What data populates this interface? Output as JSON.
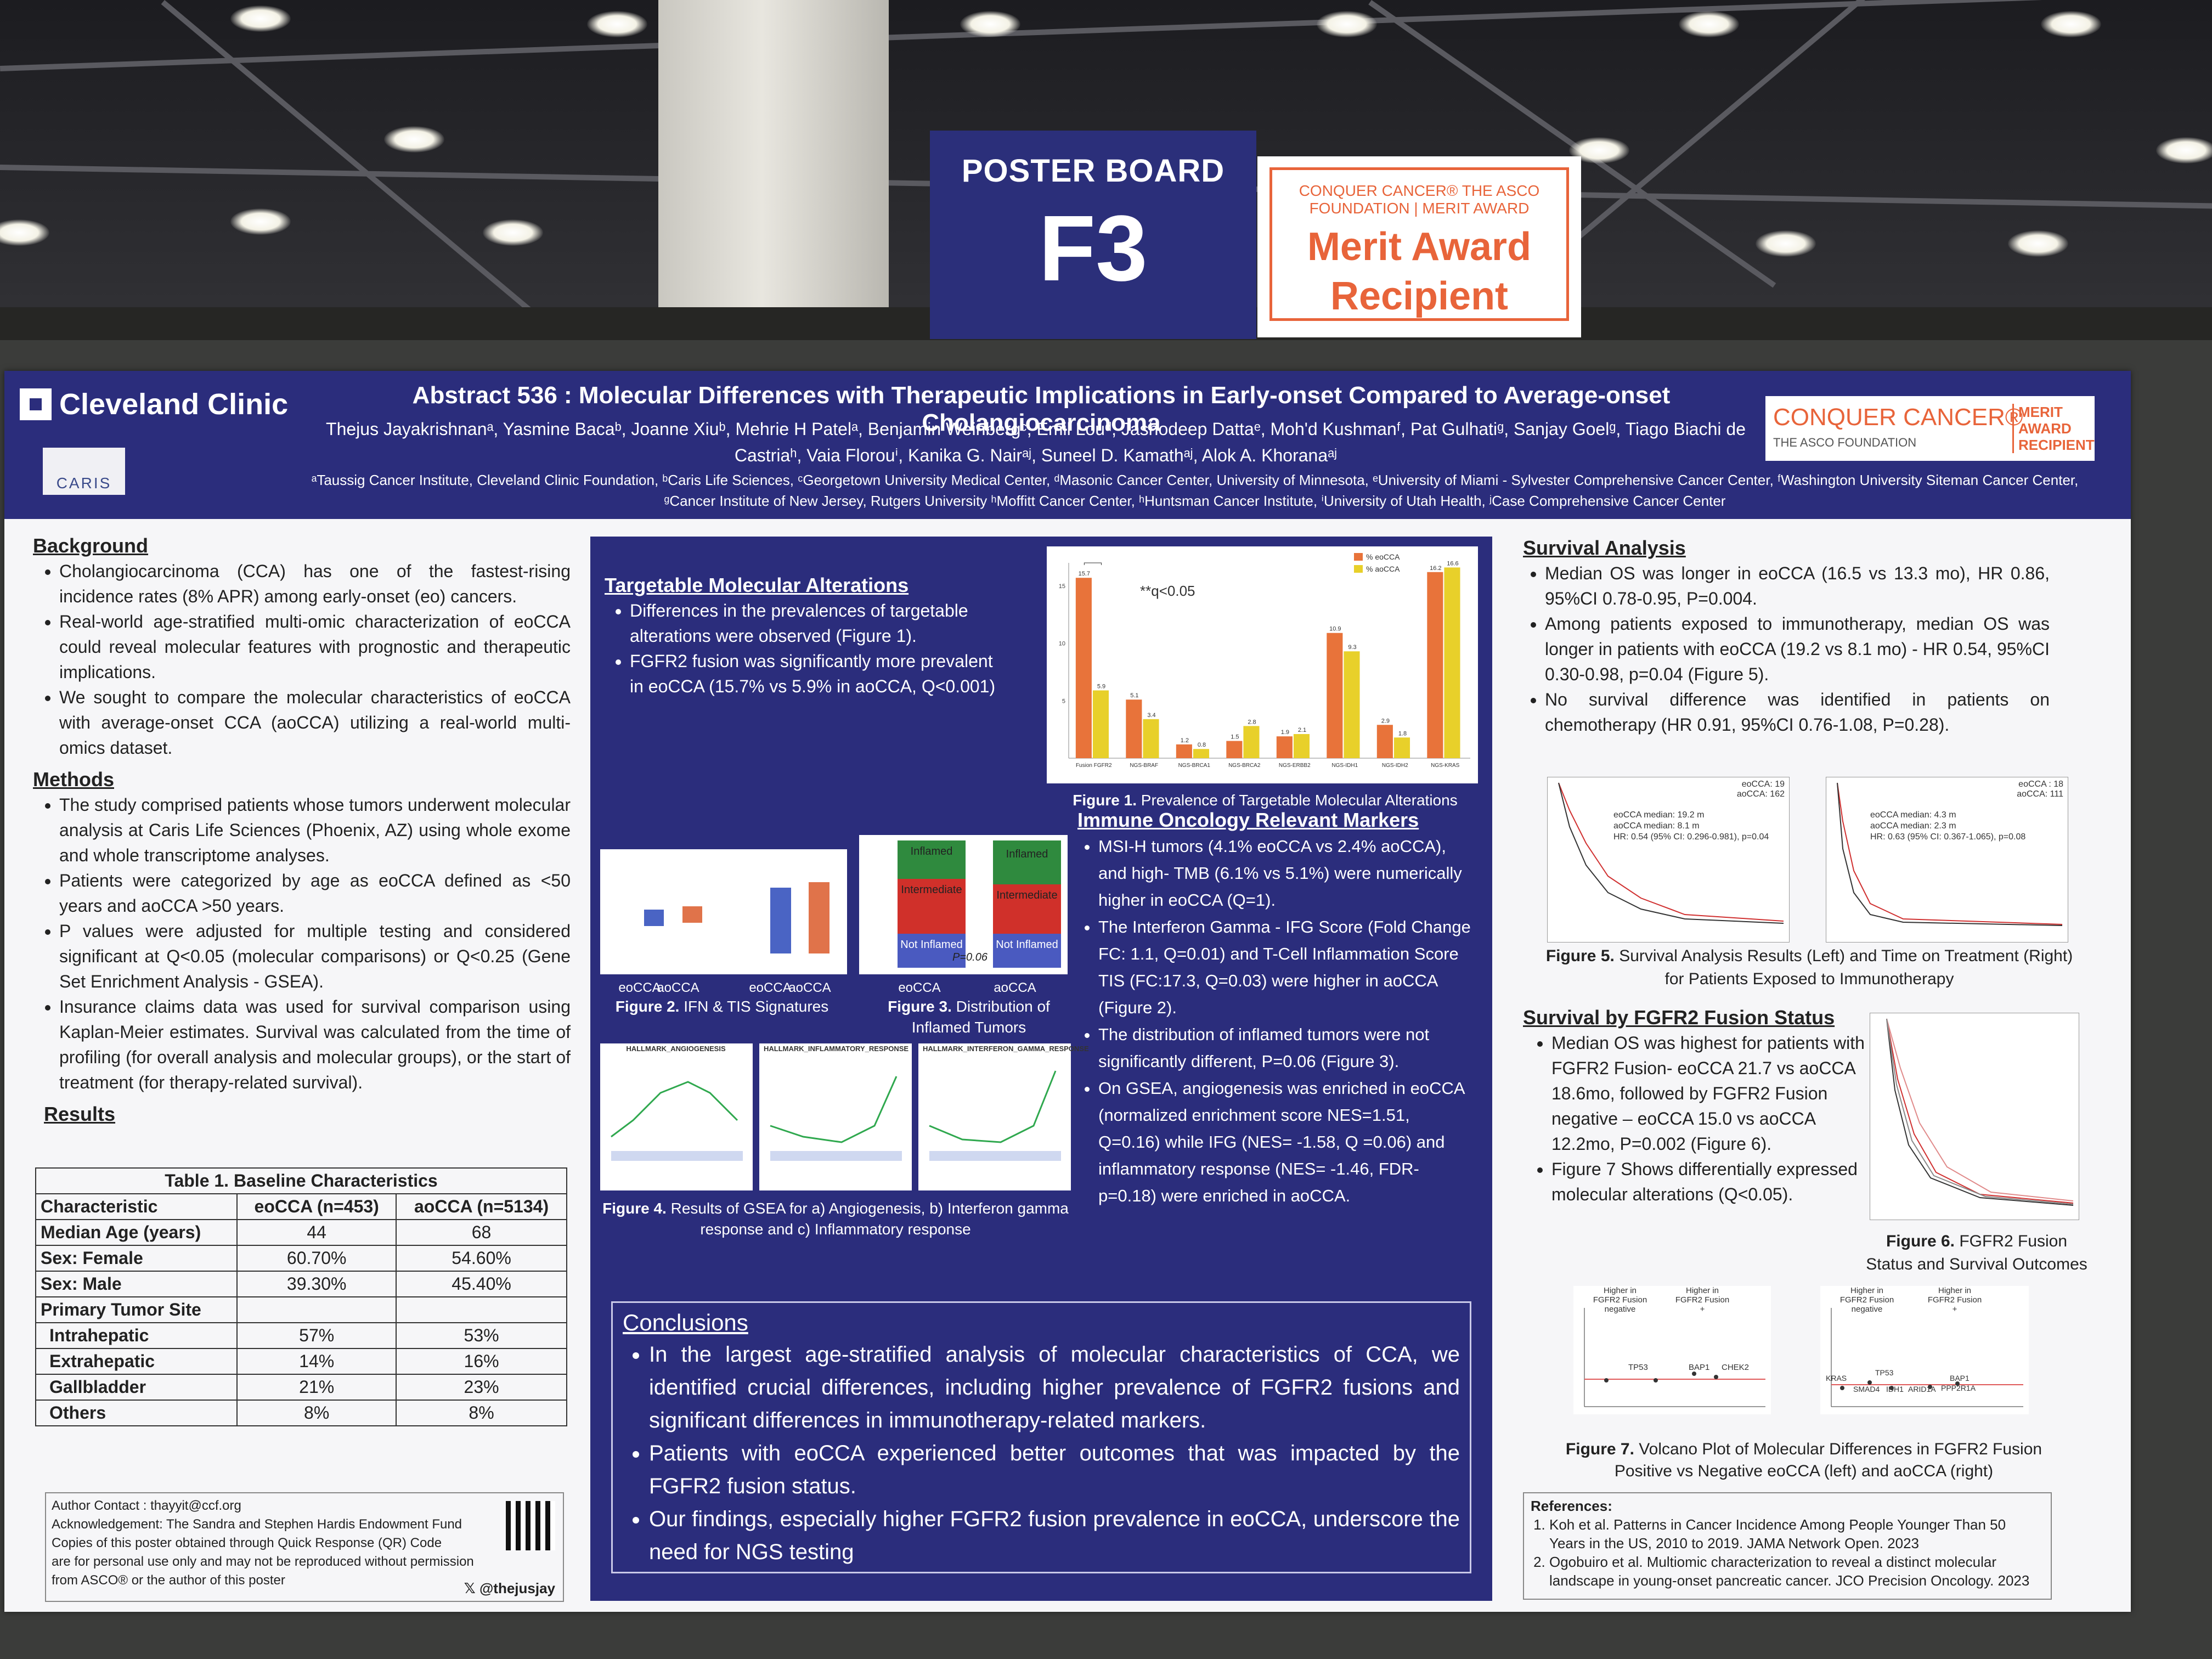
{
  "signs": {
    "poster_board_label": "POSTER BOARD",
    "poster_board_number": "F3",
    "merit_small": "CONQUER CANCER® THE ASCO FOUNDATION | MERIT AWARD",
    "merit_line1": "Merit Award",
    "merit_line2": "Recipient"
  },
  "header": {
    "clinic_logo": "Cleveland Clinic",
    "caris_logo": "CARIS",
    "title": "Abstract 536 : Molecular Differences with Therapeutic Implications in Early-onset Compared to Average-onset Cholangiocarcinoma",
    "authors": "Thejus Jayakrishnanᵃ, Yasmine Bacaᵇ, Joanne Xiuᵇ, Mehrie H Patelᵃ, Benjamin Weinbergᶜ, Emil Louᵈ, Jashodeep Dattaᵉ, Moh'd Kushmanᶠ, Pat Gulhatiᵍ, Sanjay Goelᵍ, Tiago Biachi de Castriaʰ, Vaia Florouⁱ, Kanika G. Nairᵃʲ, Suneel D. Kamathᵃʲ, Alok A. Khoranaᵃʲ",
    "affiliations": "ᵃTaussig Cancer Institute, Cleveland Clinic Foundation, ᵇCaris Life Sciences, ᶜGeorgetown University Medical Center, ᵈMasonic Cancer Center, University of Minnesota, ᵉUniversity of Miami - Sylvester Comprehensive Cancer Center, ᶠWashington University Siteman Cancer Center, ᵍCancer Institute of New Jersey, Rutgers University ʰMoffitt Cancer Center, ʰHuntsman Cancer Institute, ⁱUniversity of Utah Health, ʲCase Comprehensive Cancer Center",
    "conquer_main": "CONQUER CANCER®",
    "conquer_sub": "THE ASCO FOUNDATION",
    "conquer_award": "MERIT AWARD RECIPIENT"
  },
  "left": {
    "background_title": "Background",
    "background": [
      "Cholangiocarcinoma (CCA) has one of the fastest-rising incidence rates (8% APR) among early-onset (eo) cancers.",
      "Real-world age-stratified multi-omic characterization of eoCCA could reveal molecular features with prognostic and therapeutic implications.",
      "We sought to compare the molecular characteristics of eoCCA with average-onset CCA (aoCCA) utilizing a real-world multi-omics dataset."
    ],
    "methods_title": "Methods",
    "methods": [
      "The study comprised patients whose tumors underwent molecular analysis at Caris Life Sciences (Phoenix, AZ) using whole exome and whole transcriptome analyses.",
      "Patients were categorized by age as eoCCA defined as <50 years and aoCCA >50 years.",
      "P values were adjusted for multiple testing and considered significant at Q<0.05 (molecular comparisons) or Q<0.25 (Gene Set Enrichment Analysis - GSEA).",
      "Insurance claims data was used for survival comparison using Kaplan-Meier estimates. Survival was calculated from the time of profiling (for overall analysis and molecular groups), or the start of treatment (for therapy-related survival)."
    ],
    "results_title": "Results",
    "table": {
      "caption": "Table 1. Baseline Characteristics",
      "headers": [
        "Characteristic",
        "eoCCA (n=453)",
        "aoCCA (n=5134)"
      ],
      "rows": [
        [
          "Median Age (years)",
          "44",
          "68"
        ],
        [
          "Sex: Female",
          "60.70%",
          "54.60%"
        ],
        [
          "Sex: Male",
          "39.30%",
          "45.40%"
        ],
        [
          "Primary Tumor Site",
          "",
          ""
        ],
        [
          "Intrahepatic",
          "57%",
          "53%"
        ],
        [
          "Extrahepatic",
          "14%",
          "16%"
        ],
        [
          "Gallbladder",
          "21%",
          "23%"
        ],
        [
          "Others",
          "8%",
          "8%"
        ]
      ]
    },
    "contact": [
      "Author Contact : thayyit@ccf.org",
      "Acknowledgement: The Sandra and Stephen Hardis Endowment Fund",
      "Copies of this poster obtained through Quick Response (QR) Code",
      "are for personal use only and may not be reproduced without permission",
      "from ASCO® or the author of this poster"
    ],
    "twitter": "@thejusjay"
  },
  "middle": {
    "targetable_title": "Targetable Molecular Alterations",
    "targetable": [
      "Differences in the prevalences of targetable alterations were observed (Figure 1).",
      "FGFR2 fusion was significantly more prevalent in eoCCA (15.7% vs 5.9% in aoCCA, Q<0.001)"
    ],
    "fig1_caption_bold": "Figure 1.",
    "fig1_caption": "Prevalence of Targetable Molecular Alterations",
    "fig1_annotation": "**q<0.05",
    "fig1_legend": [
      "% eoCCA",
      "% aoCCA"
    ],
    "fig2_caption_bold": "Figure 2.",
    "fig2_caption": "IFN & TIS Signatures",
    "fig2_labels": [
      "eoCCA",
      "aoCCA",
      "eoCCA",
      "aoCCA"
    ],
    "fig3_caption_bold": "Figure 3.",
    "fig3_caption": "Distribution of Inflamed Tumors",
    "fig3_labels": [
      "eoCCA",
      "aoCCA"
    ],
    "fig3_segments": [
      "Inflamed",
      "Intermediate",
      "Not Inflamed"
    ],
    "fig3_p": "P=0.06",
    "fig4_caption_bold": "Figure 4.",
    "fig4_caption": "Results of GSEA for a) Angiogenesis, b) Interferon gamma response and c) Inflammatory response",
    "fig4_titles": [
      "HALLMARK_ANGIOGENESIS",
      "HALLMARK_INFLAMMATORY_RESPONSE",
      "HALLMARK_INTERFERON_GAMMA_RESPONSE"
    ],
    "io_title": "Immune Oncology Relevant Markers",
    "io": [
      "MSI-H tumors (4.1% eoCCA vs 2.4% aoCCA), and high- TMB (6.1% vs 5.1%) were numerically higher in eoCCA (Q=1).",
      "The Interferon Gamma - IFG Score (Fold Change FC: 1.1, Q=0.01) and T-Cell Inflammation Score TIS (FC:17.3, Q=0.03) were higher in aoCCA (Figure 2).",
      "The distribution of inflamed tumors were not significantly different, P=0.06 (Figure 3).",
      "On GSEA, angiogenesis was enriched in eoCCA (normalized enrichment score NES=1.51, Q=0.16) while IFG (NES= -1.58, Q =0.06) and inflammatory response (NES= -1.46, FDR-p=0.18) were enriched in aoCCA."
    ],
    "conclusions_title": "Conclusions",
    "conclusions": [
      "In the largest age-stratified analysis of molecular characteristics of CCA, we identified crucial differences, including higher prevalence of FGFR2 fusions and significant differences in immunotherapy-related markers.",
      "Patients with eoCCA experienced better outcomes that was impacted by the FGFR2 fusion status.",
      "Our findings, especially higher FGFR2 fusion prevalence in eoCCA, underscore the need for NGS testing"
    ]
  },
  "right": {
    "survival_title": "Survival Analysis",
    "survival": [
      "Median OS was longer in eoCCA (16.5 vs 13.3 mo), HR 0.86, 95%CI 0.78-0.95, P=0.004.",
      "Among patients exposed to immunotherapy, median OS was longer in patients with eoCCA (19.2 vs 8.1 mo) - HR 0.54, 95%CI 0.30-0.98, p=0.04 (Figure 5).",
      "No survival difference was identified in patients on chemotherapy (HR 0.91, 95%CI 0.76-1.08, P=0.28)."
    ],
    "km1_text": [
      "eoCCA median: 19.2 m",
      "aoCCA median: 8.1 m",
      "HR: 0.54 (95% CI: 0.296-0.981), p=0.04"
    ],
    "km1_legend": [
      "eoCCA: 19",
      "aoCCA: 162"
    ],
    "km2_text": [
      "eoCCA median: 4.3 m",
      "aoCCA median: 2.3 m",
      "HR: 0.63 (95% CI: 0.367-1.065), p=0.08"
    ],
    "km2_legend": [
      "eoCCA : 18",
      "aoCCA: 111"
    ],
    "fig5_caption_bold": "Figure 5.",
    "fig5_caption": "Survival Analysis Results (Left) and Time on Treatment (Right) for Patients Exposed to Immunotherapy",
    "fgfr2_title": "Survival by FGFR2 Fusion Status",
    "fgfr2": [
      "Median OS was highest for patients with FGFR2 Fusion- eoCCA 21.7 vs aoCCA 18.6mo, followed by FGFR2 Fusion negative – eoCCA 15.0 vs aoCCA 12.2mo, P=0.002 (Figure 6).",
      "Figure 7 Shows differentially expressed molecular alterations (Q<0.05)."
    ],
    "fig6_caption_bold": "Figure 6.",
    "fig6_caption": "FGFR2 Fusion Status and Survival Outcomes",
    "volcano_left_labels": [
      "Higher in FGFR2 Fusion negative",
      "Higher in FGFR2 Fusion +"
    ],
    "volcano_right_labels": [
      "Higher in FGFR2 Fusion negative",
      "Higher in FGFR2 Fusion +"
    ],
    "volcano_left_genes": [
      "TP53",
      "BAP1",
      "CHEK2"
    ],
    "volcano_right_genes": [
      "KRAS",
      "SMAD4",
      "TP53",
      "IDH1",
      "ARID1A",
      "BAP1",
      "PPP2R1A"
    ],
    "fig7_caption_bold": "Figure 7.",
    "fig7_caption": "Volcano Plot of Molecular Differences in FGFR2 Fusion Positive vs Negative eoCCA (left) and aoCCA (right)",
    "refs_title": "References:",
    "refs": [
      "Koh et al. Patterns in Cancer Incidence Among People Younger Than 50 Years in the US, 2010 to 2019. JAMA Network Open. 2023",
      "Ogobuiro et al. Multiomic characterization to reveal a distinct molecular landscape in young-onset pancreatic cancer. JCO Precision Oncology. 2023"
    ]
  },
  "chart_data": [
    {
      "type": "bar",
      "categories": [
        "Fusion FGFR2",
        "NGS-BRAF",
        "NGS-BRCA1",
        "NGS-BRCA2",
        "NGS-ERBB2",
        "NGS-IDH1",
        "NGS-IDH2",
        "NGS-KRAS"
      ],
      "series": [
        {
          "name": "% eoCCA",
          "values": [
            15.7,
            5.1,
            1.2,
            1.5,
            1.9,
            10.9,
            2.9,
            16.2
          ]
        },
        {
          "name": "% aoCCA",
          "values": [
            5.9,
            3.4,
            0.8,
            2.8,
            2.1,
            9.3,
            1.8,
            16.6
          ]
        }
      ],
      "ylim": [
        0,
        17
      ],
      "colors": [
        "#e8733a",
        "#e8d02a"
      ]
    }
  ]
}
